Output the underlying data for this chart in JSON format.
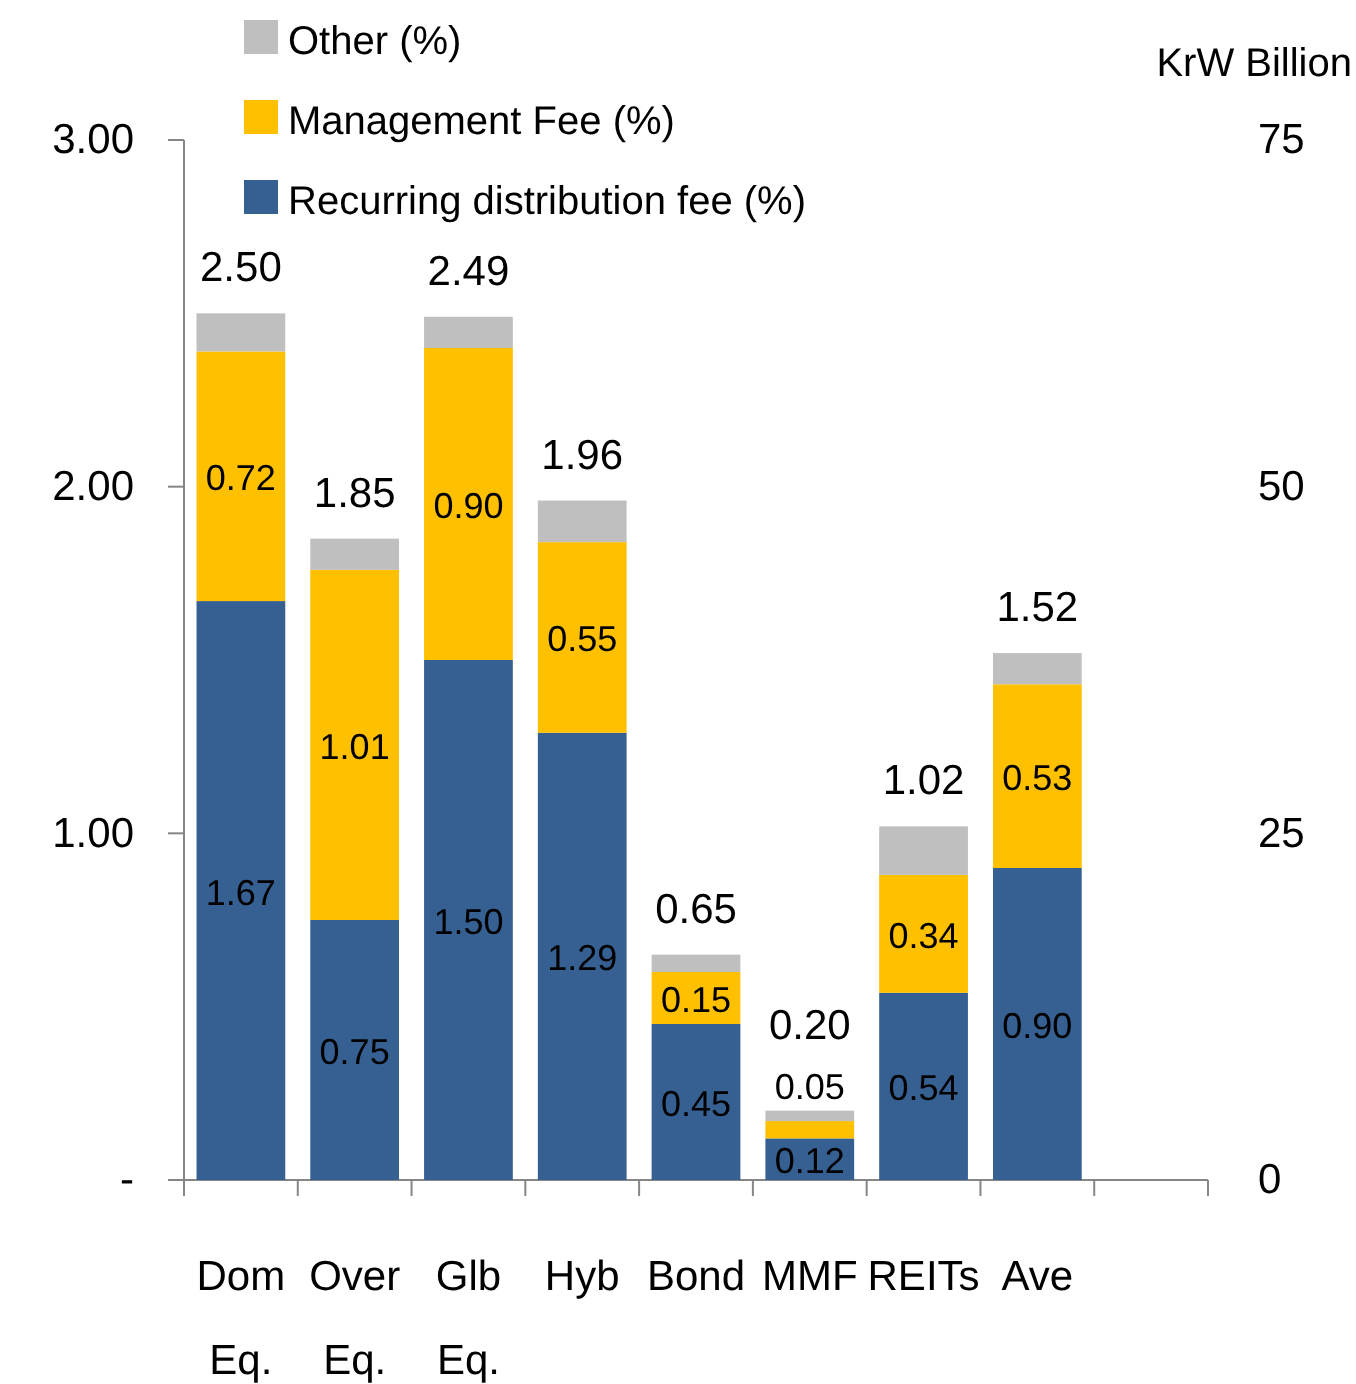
{
  "chart_data": {
    "type": "bar",
    "stacked": true,
    "categories": [
      "Dom Eq.",
      "Over Eq.",
      "Glb Eq.",
      "Hyb",
      "Bond",
      "MMF",
      "REITs",
      "Ave",
      null
    ],
    "series": [
      {
        "name": "Recurring distribution fee (%)",
        "color": "#376092",
        "values": [
          1.67,
          0.75,
          1.5,
          1.29,
          0.45,
          0.12,
          0.54,
          0.9,
          null
        ],
        "value_labels": [
          "1.67",
          "0.75",
          "1.50",
          "1.29",
          "0.45",
          "0.12",
          "0.54",
          "0.90",
          null
        ]
      },
      {
        "name": "Management Fee (%)",
        "color": "#ffc000",
        "values": [
          0.72,
          1.01,
          0.9,
          0.55,
          0.15,
          0.05,
          0.34,
          0.53,
          null
        ],
        "value_labels": [
          "0.72",
          "1.01",
          "0.90",
          "0.55",
          "0.15",
          "0.05",
          "0.34",
          "0.53",
          null
        ]
      },
      {
        "name": "Other (%)",
        "color": "#bfbfbf",
        "values": [
          0.11,
          0.09,
          0.09,
          0.12,
          0.05,
          0.03,
          0.14,
          0.09,
          null
        ]
      }
    ],
    "totals": [
      "2.50",
      "1.85",
      "2.49",
      "1.96",
      "0.65",
      "0.20",
      "1.02",
      "1.52",
      null
    ],
    "ylim": [
      0,
      3
    ],
    "yticks": [
      {
        "value": 0,
        "label": "-"
      },
      {
        "value": 1,
        "label": "1.00"
      },
      {
        "value": 2,
        "label": "2.00"
      },
      {
        "value": 3,
        "label": "3.00"
      }
    ],
    "y2label": "KrW Billion",
    "y2lim": [
      0,
      75
    ],
    "y2ticks": [
      0,
      25,
      50,
      75
    ],
    "legend": "top left",
    "grid": false
  }
}
